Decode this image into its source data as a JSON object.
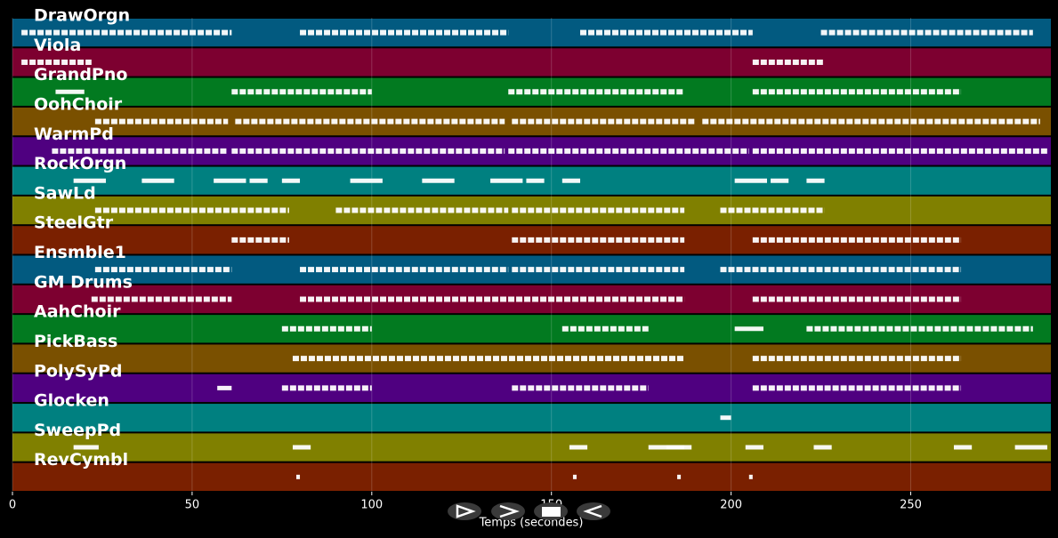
{
  "chart_data": {
    "type": "pianoroll",
    "xlabel": "Temps (secondes)",
    "xlim": [
      0,
      289
    ],
    "xticks": [
      0,
      50,
      100,
      150,
      200,
      250
    ],
    "grid": true,
    "tracks": [
      {
        "name": "DrawOrgn",
        "color": "#025a80",
        "notes": [
          [
            2.5,
            61
          ],
          [
            80,
            138
          ],
          [
            158,
            206
          ],
          [
            225,
            284
          ]
        ]
      },
      {
        "name": "Viola",
        "color": "#7d0030",
        "notes": [
          [
            2.5,
            22
          ],
          [
            206,
            226
          ]
        ]
      },
      {
        "name": "GrandPno",
        "color": "#027a20",
        "notes": [
          [
            12,
            20
          ],
          [
            61,
            100
          ],
          [
            138,
            187
          ],
          [
            206,
            264
          ]
        ]
      },
      {
        "name": "OohChoir",
        "color": "#7a5000",
        "notes": [
          [
            23,
            60
          ],
          [
            62,
            137
          ],
          [
            139,
            190
          ],
          [
            192,
            286
          ]
        ]
      },
      {
        "name": "WarmPd",
        "color": "#4f0080",
        "notes": [
          [
            11,
            60
          ],
          [
            61,
            137
          ],
          [
            138,
            205
          ],
          [
            206,
            288
          ]
        ]
      },
      {
        "name": "RockOrgn",
        "color": "#008080",
        "notes": [
          [
            17,
            26
          ],
          [
            36,
            45
          ],
          [
            56,
            65
          ],
          [
            66,
            71
          ],
          [
            75,
            80
          ],
          [
            94,
            103
          ],
          [
            114,
            123
          ],
          [
            133,
            142
          ],
          [
            143,
            148
          ],
          [
            153,
            158
          ],
          [
            201,
            210
          ],
          [
            211,
            216
          ],
          [
            221,
            226
          ]
        ]
      },
      {
        "name": "SawLd",
        "color": "#808000",
        "notes": [
          [
            23,
            61
          ],
          [
            61,
            77
          ],
          [
            90,
            138
          ],
          [
            139,
            187
          ],
          [
            197,
            226
          ]
        ]
      },
      {
        "name": "SteelGtr",
        "color": "#7a2000",
        "notes": [
          [
            61,
            77
          ],
          [
            139,
            187
          ],
          [
            206,
            264
          ]
        ]
      },
      {
        "name": "Ensmble1",
        "color": "#025a80",
        "notes": [
          [
            23,
            61
          ],
          [
            80,
            100
          ],
          [
            100,
            138
          ],
          [
            139,
            187
          ],
          [
            197,
            226
          ],
          [
            226,
            264
          ]
        ]
      },
      {
        "name": "GM Drums",
        "color": "#7d0030",
        "notes": [
          [
            22,
            61
          ],
          [
            80,
            187
          ],
          [
            206,
            264
          ]
        ]
      },
      {
        "name": "AahChoir",
        "color": "#027a20",
        "notes": [
          [
            75,
            100
          ],
          [
            153,
            177
          ],
          [
            201,
            209
          ],
          [
            221,
            284
          ]
        ]
      },
      {
        "name": "PickBass",
        "color": "#7a5000",
        "notes": [
          [
            78,
            187
          ],
          [
            206,
            264
          ]
        ]
      },
      {
        "name": "PolySyPd",
        "color": "#4f0080",
        "notes": [
          [
            57,
            61
          ],
          [
            75,
            100
          ],
          [
            139,
            177
          ],
          [
            206,
            226
          ],
          [
            226,
            264
          ]
        ]
      },
      {
        "name": "Glocken",
        "color": "#008080",
        "notes": [
          [
            197,
            200
          ]
        ]
      },
      {
        "name": "SweepPd",
        "color": "#808000",
        "notes": [
          [
            17,
            24
          ],
          [
            78,
            83
          ],
          [
            155,
            160
          ],
          [
            177,
            187
          ],
          [
            182,
            189
          ],
          [
            204,
            209
          ],
          [
            223,
            228
          ],
          [
            262,
            267
          ],
          [
            279,
            288
          ]
        ]
      },
      {
        "name": "RevCymbl",
        "color": "#7a2000",
        "notes": [
          [
            79,
            80
          ],
          [
            156,
            157
          ],
          [
            185,
            186
          ],
          [
            205,
            206
          ]
        ]
      }
    ]
  }
}
